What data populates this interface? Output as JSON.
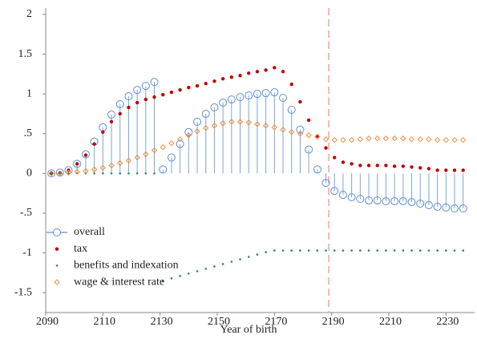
{
  "chart_data": {
    "type": "line",
    "x_label": "Year of birth",
    "x": [
      2092,
      2095,
      2098,
      2101,
      2104,
      2107,
      2110,
      2113,
      2116,
      2119,
      2122,
      2125,
      2128,
      2131,
      2134,
      2137,
      2140,
      2143,
      2146,
      2149,
      2152,
      2155,
      2158,
      2161,
      2164,
      2167,
      2170,
      2173,
      2176,
      2179,
      2182,
      2185,
      2188,
      2191,
      2194,
      2197,
      2200,
      2203,
      2206,
      2209,
      2212,
      2215,
      2218,
      2221,
      2224,
      2227,
      2230,
      2233,
      2236
    ],
    "series": [
      {
        "name": "overall",
        "color": "#5b8fd4",
        "marker": "stem-circle",
        "values": [
          0,
          0.01,
          0.04,
          0.12,
          0.24,
          0.4,
          0.58,
          0.74,
          0.87,
          0.97,
          1.05,
          1.1,
          1.15,
          0.05,
          0.2,
          0.37,
          0.52,
          0.65,
          0.75,
          0.83,
          0.89,
          0.93,
          0.96,
          0.98,
          1.0,
          1.01,
          1.02,
          0.95,
          0.8,
          0.55,
          0.3,
          0.05,
          -0.12,
          -0.22,
          -0.27,
          -0.3,
          -0.32,
          -0.34,
          -0.34,
          -0.35,
          -0.35,
          -0.35,
          -0.36,
          -0.38,
          -0.4,
          -0.42,
          -0.43,
          -0.44,
          -0.44
        ]
      },
      {
        "name": "tax",
        "color": "#c00000",
        "marker": "dot",
        "values": [
          0,
          0.01,
          0.04,
          0.12,
          0.23,
          0.37,
          0.52,
          0.65,
          0.75,
          0.83,
          0.89,
          0.93,
          0.96,
          0.99,
          1.02,
          1.05,
          1.08,
          1.1,
          1.13,
          1.16,
          1.19,
          1.21,
          1.23,
          1.26,
          1.28,
          1.3,
          1.33,
          1.28,
          1.12,
          0.9,
          0.67,
          0.47,
          0.32,
          0.2,
          0.14,
          0.12,
          0.1,
          0.1,
          0.1,
          0.1,
          0.09,
          0.09,
          0.08,
          0.07,
          0.06,
          0.04,
          0.04,
          0.04,
          0.04
        ]
      },
      {
        "name": "benefits and indexation",
        "color": "#2e8b57",
        "marker": "small-dot",
        "values": [
          0,
          0,
          0,
          0,
          0,
          0,
          0,
          0,
          0,
          0,
          0,
          0,
          0,
          -1.35,
          -1.32,
          -1.29,
          -1.26,
          -1.23,
          -1.2,
          -1.17,
          -1.14,
          -1.11,
          -1.08,
          -1.05,
          -1.02,
          -0.99,
          -0.97,
          -0.97,
          -0.97,
          -0.97,
          -0.97,
          -0.97,
          -0.97,
          -0.97,
          -0.97,
          -0.97,
          -0.97,
          -0.97,
          -0.97,
          -0.97,
          -0.97,
          -0.97,
          -0.97,
          -0.97,
          -0.97,
          -0.97,
          -0.97,
          -0.97,
          -0.97
        ]
      },
      {
        "name": "wage & interest rate",
        "color": "#f08c3c",
        "marker": "diamond",
        "values": [
          0,
          0,
          0.01,
          0.02,
          0.03,
          0.05,
          0.07,
          0.1,
          0.13,
          0.16,
          0.2,
          0.24,
          0.29,
          0.33,
          0.38,
          0.43,
          0.48,
          0.53,
          0.57,
          0.6,
          0.63,
          0.65,
          0.65,
          0.64,
          0.62,
          0.6,
          0.58,
          0.55,
          0.52,
          0.5,
          0.48,
          0.46,
          0.43,
          0.42,
          0.42,
          0.42,
          0.43,
          0.44,
          0.44,
          0.44,
          0.44,
          0.44,
          0.43,
          0.43,
          0.43,
          0.42,
          0.42,
          0.42,
          0.42
        ]
      }
    ],
    "reference_line": {
      "x": 2189,
      "color": "#f4a09c"
    },
    "xlim": [
      2090,
      2240
    ],
    "xticks": [
      2090,
      2110,
      2130,
      2150,
      2170,
      2190,
      2210,
      2230
    ],
    "ylim": [
      -1.75,
      2.08
    ],
    "yticks": [
      -1.5,
      -1,
      {
        "value": -0.5,
        "label": "-.5"
      },
      0,
      {
        "value": 0.5,
        "label": ".5"
      },
      1,
      1.5,
      2
    ],
    "legend": "lower left"
  }
}
